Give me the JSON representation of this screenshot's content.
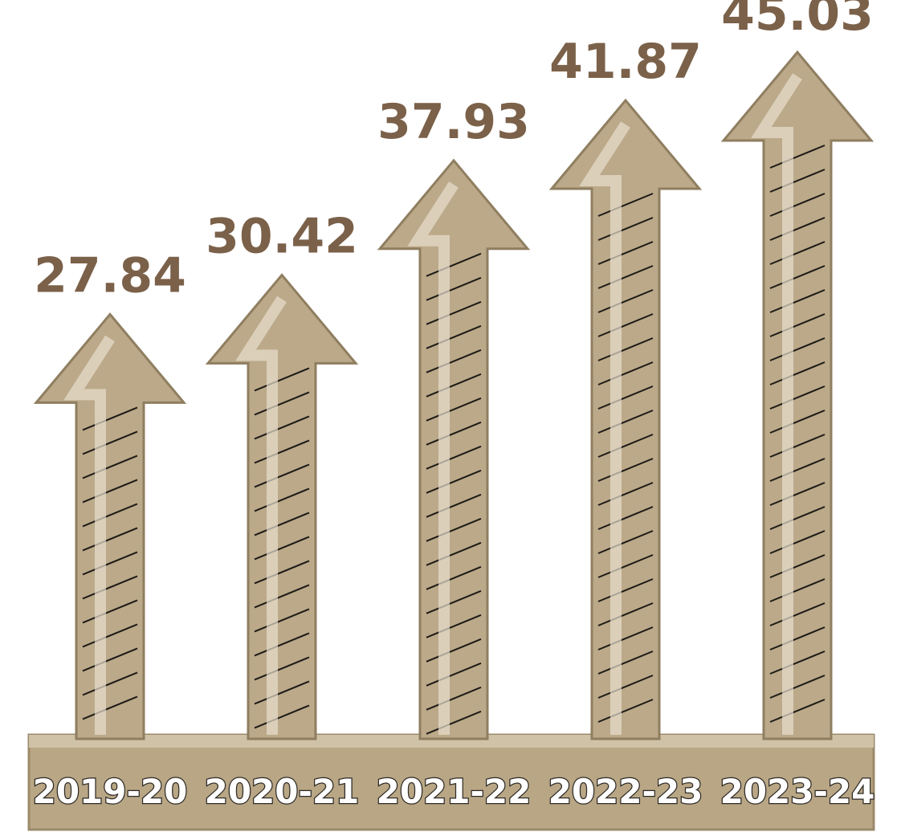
{
  "chart_data": {
    "type": "arrow-bar",
    "categories": [
      "2019-20",
      "2020-21",
      "2021-22",
      "2022-23",
      "2023-24"
    ],
    "values": [
      27.84,
      30.42,
      37.93,
      41.87,
      45.03
    ],
    "color": "#bba989"
  }
}
